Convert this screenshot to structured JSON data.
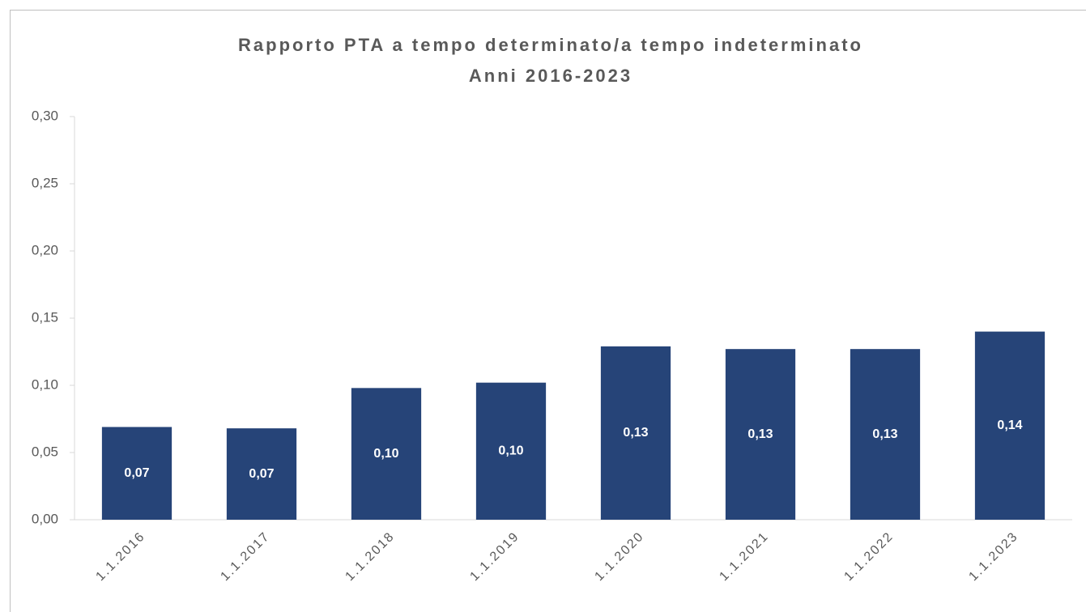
{
  "chart_data": {
    "type": "bar",
    "title": "Rapporto PTA a tempo determinato/a tempo indeterminato",
    "subtitle": "Anni 2016-2023",
    "categories": [
      "1.1.2016",
      "1.1.2017",
      "1.1.2018",
      "1.1.2019",
      "1.1.2020",
      "1.1.2021",
      "1.1.2022",
      "1.1.2023"
    ],
    "values": [
      0.069,
      0.068,
      0.098,
      0.102,
      0.129,
      0.127,
      0.127,
      0.14
    ],
    "value_labels": [
      "0,07",
      "0,07",
      "0,10",
      "0,10",
      "0,13",
      "0,13",
      "0,13",
      "0,14"
    ],
    "color": "#264478",
    "ylim": [
      0,
      0.3
    ],
    "yticks": [
      {
        "value": 0,
        "label": "0,00"
      },
      {
        "value": 0.05,
        "label": "0,05"
      },
      {
        "value": 0.1,
        "label": "0,10"
      },
      {
        "value": 0.15,
        "label": "0,15"
      },
      {
        "value": 0.2,
        "label": "0,20"
      },
      {
        "value": 0.25,
        "label": "0,25"
      },
      {
        "value": 0.3,
        "label": "0,30"
      }
    ],
    "grid": false
  }
}
